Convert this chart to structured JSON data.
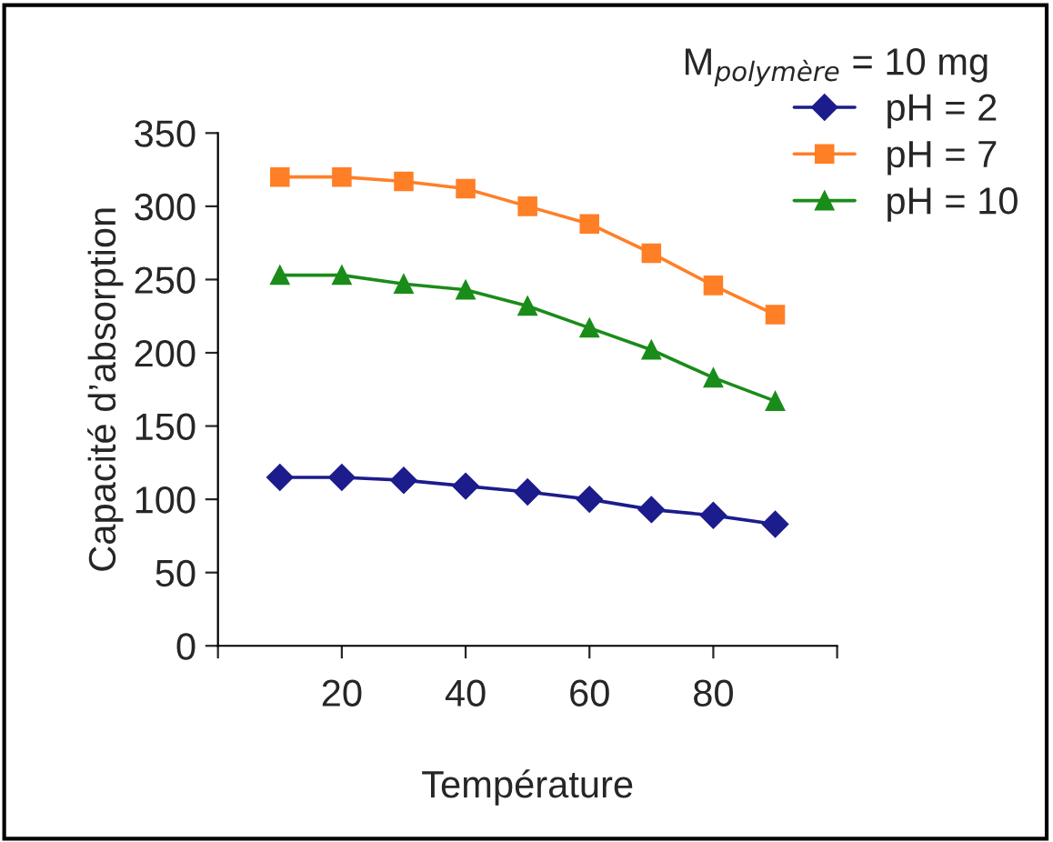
{
  "chart_data": {
    "type": "line",
    "xlabel": "Température",
    "ylabel": "Capacité d’absorption",
    "annotations": [
      "M$_{polymère}$ = 10 mg"
    ],
    "x": [
      10,
      20,
      30,
      40,
      50,
      60,
      70,
      80,
      90
    ],
    "series": [
      {
        "name": "pH = 2",
        "color": "#1c1c8c",
        "marker": "diamond",
        "values": [
          115,
          115,
          113,
          109,
          105,
          100,
          93,
          89,
          83
        ]
      },
      {
        "name": "pH = 7",
        "color": "#ff7f27",
        "marker": "square",
        "values": [
          320,
          320,
          317,
          312,
          300,
          288,
          268,
          246,
          226
        ]
      },
      {
        "name": "pH = 10",
        "color": "#1a8c1a",
        "marker": "triangle",
        "values": [
          253,
          253,
          247,
          243,
          232,
          217,
          202,
          183,
          167
        ]
      }
    ],
    "xlim": [
      0,
      100
    ],
    "xticks": [
      {
        "value": 0,
        "label": null
      },
      20,
      40,
      60,
      80,
      {
        "value": 100,
        "label": null
      }
    ],
    "ylim": [
      0,
      350
    ],
    "yticks": [
      0,
      50,
      100,
      150,
      200,
      250,
      300,
      350
    ],
    "grid": false,
    "legend": "top right",
    "line_style": "solid"
  }
}
